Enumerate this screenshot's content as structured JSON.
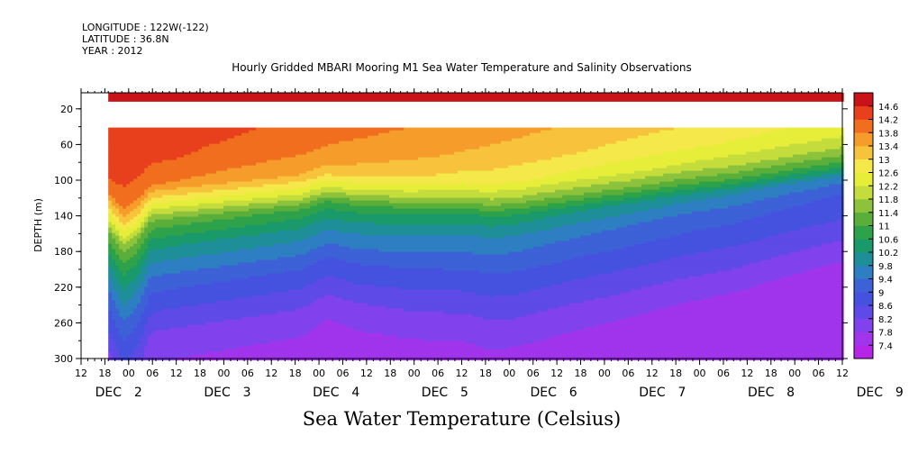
{
  "header": {
    "longitude": "LONGITUDE : 122W(-122)",
    "latitude": "LATITUDE : 36.8N",
    "year": "YEAR : 2012"
  },
  "chart_data": {
    "type": "heatmap",
    "title": "Hourly Gridded MBARI Mooring M1 Sea Water Temperature and Salinity Observations",
    "figure_title": "Sea Water Temperature (Celsius)",
    "ylabel": "DEPTH (m)",
    "xlabel": "",
    "x_range_hours": [
      0,
      168
    ],
    "ylim": [
      300,
      2
    ],
    "y_ticks": [
      20,
      60,
      100,
      140,
      180,
      220,
      260,
      300
    ],
    "x_hour_ticks": [
      "12",
      "18",
      "00",
      "06",
      "12",
      "18",
      "00",
      "06",
      "12",
      "18",
      "00",
      "06",
      "12",
      "18",
      "00",
      "06",
      "12",
      "18",
      "00",
      "06",
      "12",
      "18",
      "00",
      "06",
      "12",
      "18",
      "00",
      "06",
      "12",
      "18",
      "00",
      "06",
      "12"
    ],
    "date_labels": [
      {
        "month": "DEC",
        "day": "2"
      },
      {
        "month": "DEC",
        "day": "3"
      },
      {
        "month": "DEC",
        "day": "4"
      },
      {
        "month": "DEC",
        "day": "5"
      },
      {
        "month": "DEC",
        "day": "6"
      },
      {
        "month": "DEC",
        "day": "7"
      },
      {
        "month": "DEC",
        "day": "8"
      },
      {
        "month": "DEC",
        "day": "9"
      }
    ],
    "data_start_hour": 6,
    "missing_depth_band_m": [
      12,
      41
    ],
    "surface_value": 14.7,
    "colorbar": {
      "levels": [
        7.4,
        7.8,
        8.2,
        8.6,
        9,
        9.4,
        9.8,
        10.2,
        10.6,
        11,
        11.4,
        11.8,
        12.2,
        12.6,
        13,
        13.4,
        13.8,
        14.2,
        14.6
      ],
      "labels": [
        "14.6",
        "14.2",
        "13.8",
        "13.4",
        "13",
        "12.6",
        "12.2",
        "11.8",
        "11.4",
        "11",
        "10.6",
        "10.2",
        "9.8",
        "9.4",
        "9",
        "8.6",
        "8.2",
        "7.8",
        "7.4"
      ]
    },
    "thermocline_depth_m": {
      "hours": [
        6,
        9,
        12,
        15,
        18,
        24,
        36,
        48,
        54,
        60,
        72,
        84,
        90,
        96,
        108,
        120,
        132,
        144,
        156,
        168
      ],
      "depth": [
        140,
        160,
        150,
        130,
        128,
        126,
        122,
        118,
        110,
        115,
        120,
        122,
        126,
        125,
        118,
        112,
        105,
        100,
        92,
        85
      ]
    },
    "profile_depths_m": [
      41,
      70,
      95,
      115,
      135,
      160,
      200,
      250,
      300
    ],
    "profile_start_c": [
      14.6,
      14.4,
      14.0,
      12.8,
      11.4,
      10.4,
      9.2,
      8.2,
      7.6
    ],
    "profile_end_c": [
      12.6,
      12.2,
      11.6,
      10.8,
      9.6,
      9.0,
      8.6,
      8.0,
      7.4
    ]
  }
}
